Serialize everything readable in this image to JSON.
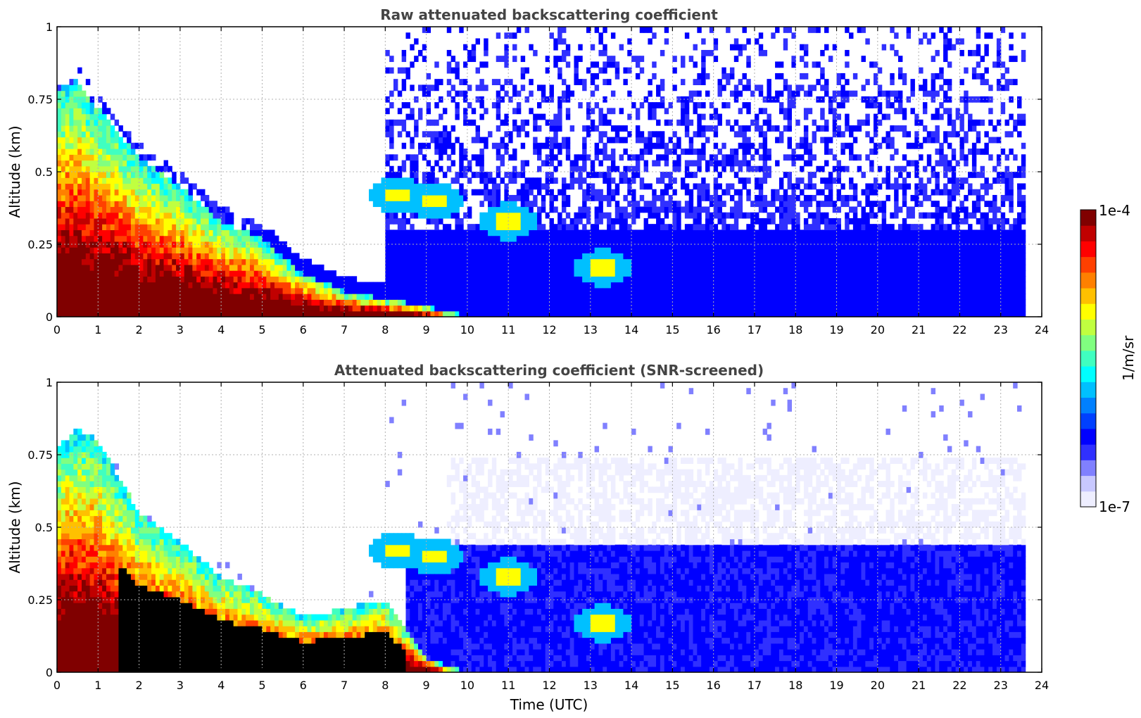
{
  "chart_data": [
    {
      "type": "heatmap",
      "title": "Raw attenuated backscattering coefficient",
      "xlabel": "",
      "ylabel": "Altitude (km)",
      "xlim": [
        0,
        24
      ],
      "ylim": [
        0,
        1
      ],
      "xticks": [
        "0",
        "1",
        "2",
        "3",
        "4",
        "5",
        "6",
        "7",
        "8",
        "9",
        "10",
        "11",
        "12",
        "13",
        "14",
        "15",
        "16",
        "17",
        "18",
        "19",
        "20",
        "21",
        "22",
        "23",
        "24"
      ],
      "yticks": [
        "0",
        "0.25",
        "0.5",
        "0.75",
        "1"
      ],
      "grid": true,
      "data_end_time": 23.6,
      "boundary_layer_top": {
        "x": [
          0,
          0.5,
          1,
          2,
          3,
          4,
          5,
          6,
          7,
          8,
          9,
          10
        ],
        "y": [
          0.78,
          0.82,
          0.72,
          0.55,
          0.45,
          0.33,
          0.27,
          0.15,
          0.09,
          0.06,
          0.04,
          0.0
        ]
      },
      "features": [
        {
          "label": "aerosol layer",
          "x": 8.3,
          "y": 0.42
        },
        {
          "label": "aerosol layer",
          "x": 9.2,
          "y": 0.4
        },
        {
          "label": "aerosol layer",
          "x": 11.0,
          "y": 0.33
        },
        {
          "label": "aerosol layer",
          "x": 13.3,
          "y": 0.17
        }
      ]
    },
    {
      "type": "heatmap",
      "title": "Attenuated backscattering coefficient (SNR-screened)",
      "xlabel": "Time (UTC)",
      "ylabel": "Altitude (km)",
      "xlim": [
        0,
        24
      ],
      "ylim": [
        0,
        1
      ],
      "xticks": [
        "0",
        "1",
        "2",
        "3",
        "4",
        "5",
        "6",
        "7",
        "8",
        "9",
        "10",
        "11",
        "12",
        "13",
        "14",
        "15",
        "16",
        "17",
        "18",
        "19",
        "20",
        "21",
        "22",
        "23",
        "24"
      ],
      "yticks": [
        "0",
        "0.25",
        "0.5",
        "0.75",
        "1"
      ],
      "grid": true,
      "data_end_time": 23.6,
      "boundary_layer_top": {
        "x": [
          0,
          0.5,
          1,
          2,
          3,
          4,
          5,
          6,
          7,
          8,
          9,
          10
        ],
        "y": [
          0.78,
          0.84,
          0.8,
          0.55,
          0.45,
          0.33,
          0.27,
          0.19,
          0.22,
          0.25,
          0.05,
          0.0
        ]
      },
      "features": [
        {
          "label": "aerosol layer",
          "x": 8.3,
          "y": 0.42
        },
        {
          "label": "aerosol layer",
          "x": 9.2,
          "y": 0.4
        },
        {
          "label": "aerosol layer",
          "x": 11.0,
          "y": 0.33
        },
        {
          "label": "aerosol layer",
          "x": 13.3,
          "y": 0.17
        }
      ]
    }
  ],
  "colorbar": {
    "label": "1/m/sr",
    "max_label": "1e-4",
    "min_label": "1e-7",
    "colors": [
      "#eeeeff",
      "#c8c8ff",
      "#8080ff",
      "#3030ff",
      "#0000ff",
      "#0040ff",
      "#0080ff",
      "#00c0ff",
      "#00ffff",
      "#40ffc0",
      "#80ff80",
      "#c0ff40",
      "#ffff00",
      "#ffc000",
      "#ff8000",
      "#ff4000",
      "#ff0000",
      "#c00000",
      "#800000"
    ]
  }
}
